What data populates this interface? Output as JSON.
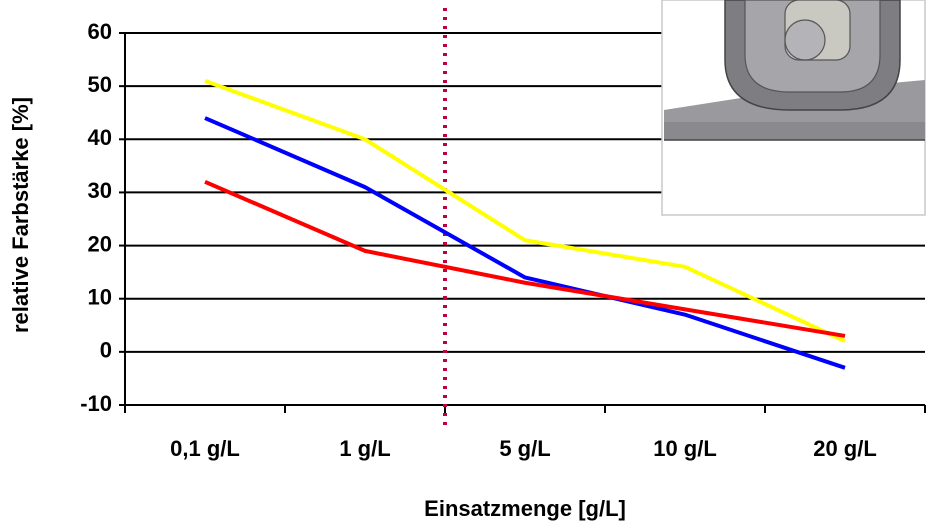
{
  "chart_data": {
    "type": "line",
    "x_label": "Einsatzmenge [g/L]",
    "y_label": "relative Farbstärke [%]",
    "categories": [
      "0,1 g/L",
      "1 g/L",
      "5 g/L",
      "10 g/L",
      "20 g/L"
    ],
    "series": [
      {
        "color": "#ffff00",
        "values": [
          51,
          40,
          21,
          16,
          2
        ]
      },
      {
        "color": "#0000ff",
        "values": [
          44,
          31,
          14,
          7,
          -3
        ]
      },
      {
        "color": "#ff0000",
        "values": [
          32,
          19,
          13,
          8,
          3
        ]
      }
    ],
    "ylim": [
      -10,
      60
    ],
    "yticks": [
      -10,
      0,
      10,
      20,
      30,
      40,
      50,
      60
    ],
    "grid": true
  }
}
